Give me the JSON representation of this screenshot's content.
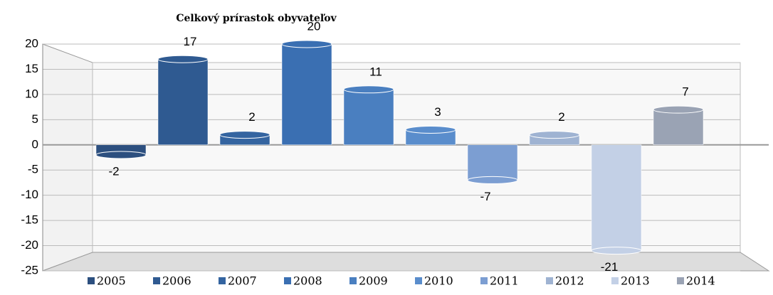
{
  "chart_data": {
    "type": "bar",
    "title": "Celkový prírastok obyvateľov",
    "categories": [
      null
    ],
    "series": [
      {
        "name": "2005",
        "color": "#2c4f7f",
        "values": [
          -2
        ]
      },
      {
        "name": "2006",
        "color": "#2f5a91",
        "values": [
          17
        ]
      },
      {
        "name": "2007",
        "color": "#3464a0",
        "values": [
          2
        ]
      },
      {
        "name": "2008",
        "color": "#3a6fb2",
        "values": [
          20
        ]
      },
      {
        "name": "2009",
        "color": "#4a7fc0",
        "values": [
          11
        ]
      },
      {
        "name": "2010",
        "color": "#5a8dcc",
        "values": [
          3
        ]
      },
      {
        "name": "2011",
        "color": "#7c9ed2",
        "values": [
          -7
        ]
      },
      {
        "name": "2012",
        "color": "#9fb3d2",
        "values": [
          2
        ]
      },
      {
        "name": "2013",
        "color": "#c3d0e6",
        "values": [
          -21
        ]
      },
      {
        "name": "2014",
        "color": "#9aa3b4",
        "values": [
          7
        ]
      }
    ],
    "ylim": [
      -25,
      20
    ],
    "yticks": [
      -25,
      -20,
      -15,
      -10,
      -5,
      0,
      5,
      10,
      15,
      20
    ],
    "grid": true,
    "legend": "bottom"
  }
}
